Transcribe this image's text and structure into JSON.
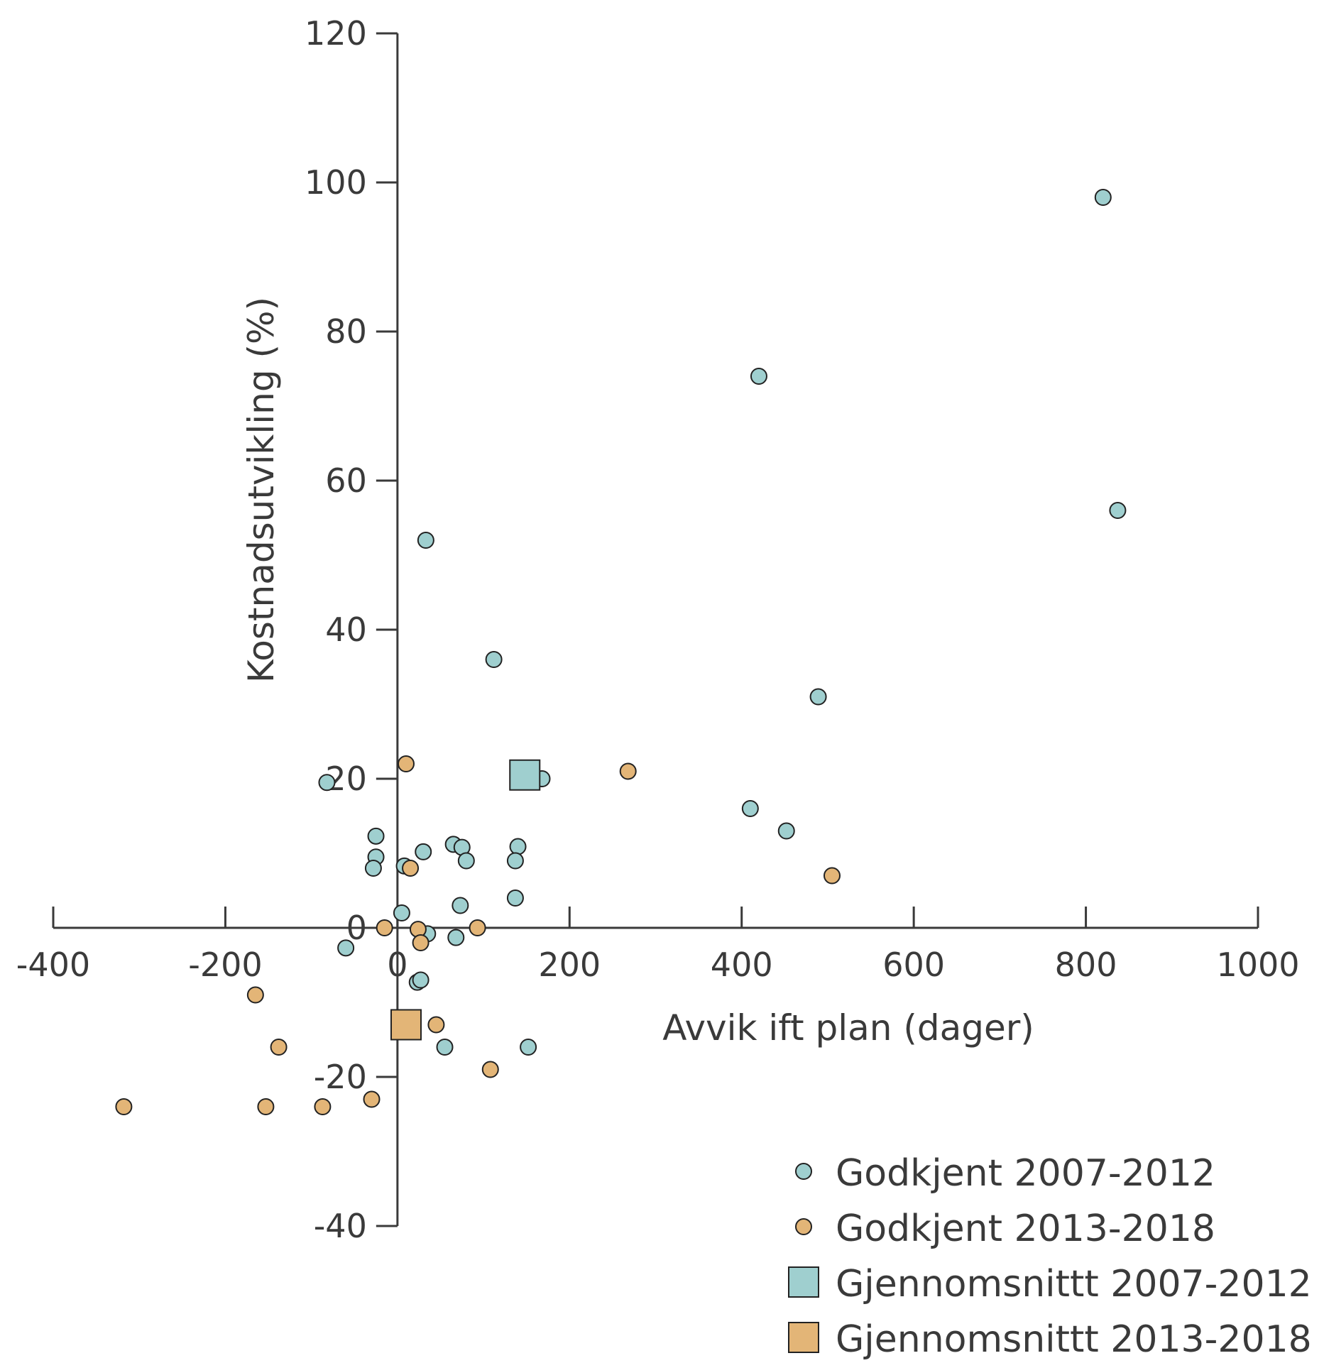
{
  "chart_data": {
    "type": "scatter",
    "xlabel": "Avvik ift plan (dager)",
    "ylabel": "Kostnadsutvikling (%)",
    "xlim": [
      -400,
      1000
    ],
    "ylim": [
      -40,
      120
    ],
    "xticks": [
      -400,
      -200,
      0,
      200,
      400,
      600,
      800,
      1000
    ],
    "yticks": [
      -40,
      -20,
      0,
      20,
      40,
      60,
      80,
      100,
      120
    ],
    "xtick_labels": [
      "-400",
      "-200",
      "0",
      "200",
      "400",
      "600",
      "800",
      "1000"
    ],
    "ytick_labels": [
      "-40",
      "-20",
      "0",
      "20",
      "40",
      "60",
      "80",
      "100",
      "120"
    ],
    "grid": false,
    "legend_position": "bottom-right",
    "series": [
      {
        "name": "Godkjent 2007-2012",
        "marker": "circle",
        "color": "#9fcfcf",
        "points": [
          [
            820,
            98
          ],
          [
            420,
            74
          ],
          [
            837,
            56
          ],
          [
            33,
            52
          ],
          [
            112,
            36
          ],
          [
            489,
            31
          ],
          [
            -82,
            19.5
          ],
          [
            168,
            20
          ],
          [
            410,
            16
          ],
          [
            452,
            13
          ],
          [
            -25,
            12.3
          ],
          [
            -25,
            9.5
          ],
          [
            -28,
            8
          ],
          [
            8,
            8.3
          ],
          [
            30,
            10.2
          ],
          [
            65,
            11.2
          ],
          [
            75,
            10.8
          ],
          [
            140,
            10.9
          ],
          [
            80,
            9
          ],
          [
            137,
            9
          ],
          [
            137,
            4
          ],
          [
            73,
            3
          ],
          [
            5,
            2
          ],
          [
            35,
            -0.8
          ],
          [
            68,
            -1.3
          ],
          [
            -60,
            -2.7
          ],
          [
            23,
            -7.3
          ],
          [
            27,
            -7
          ],
          [
            55,
            -16
          ],
          [
            152,
            -16
          ]
        ]
      },
      {
        "name": "Godkjent 2013-2018",
        "marker": "circle",
        "color": "#e3b577",
        "points": [
          [
            10,
            22
          ],
          [
            268,
            21
          ],
          [
            15,
            8
          ],
          [
            505,
            7
          ],
          [
            -15,
            0
          ],
          [
            24,
            -0.2
          ],
          [
            93,
            0
          ],
          [
            27,
            -2
          ],
          [
            -165,
            -9
          ],
          [
            45,
            -13
          ],
          [
            -138,
            -16
          ],
          [
            108,
            -19
          ],
          [
            -318,
            -24
          ],
          [
            -153,
            -24
          ],
          [
            -87,
            -24
          ],
          [
            -30,
            -23
          ]
        ]
      },
      {
        "name": "Gjennomsnittt 2007-2012",
        "marker": "square",
        "color": "#9fcfcf",
        "points": [
          [
            148,
            20.5
          ]
        ]
      },
      {
        "name": "Gjennomsnittt 2013-2018",
        "marker": "square",
        "color": "#e3b577",
        "points": [
          [
            10,
            -13
          ]
        ]
      }
    ]
  }
}
